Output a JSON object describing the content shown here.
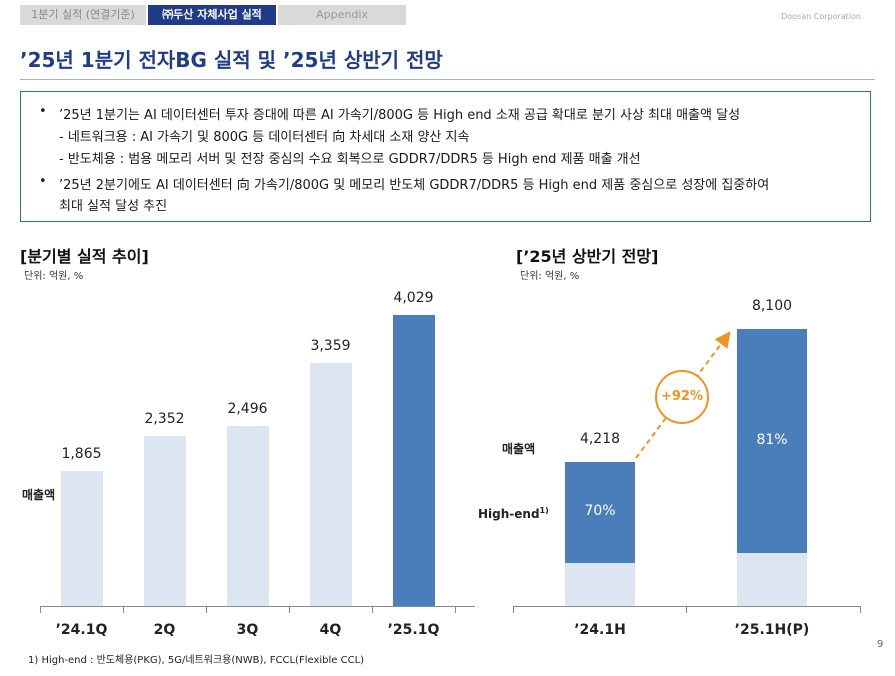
{
  "tabs": [
    {
      "label": "1분기 실적 (연결기준)",
      "active": false
    },
    {
      "label": "㈜두산 자체사업 실적",
      "active": true
    },
    {
      "label": "Appendix",
      "active": false
    }
  ],
  "corp_name": "Doosan Corporation",
  "page_title": "’25년 1분기 전자BG 실적 및 ’25년 상반기 전망",
  "summary": {
    "bullet_1": "’25년 1분기는 AI 데이터센터 투자 증대에 따른 AI 가속기/800G 등 High end 소재 공급 확대로 분기 사상 최대 매출액 달성",
    "sub_1": "- 네트워크용 : AI 가속기 및 800G 등 데이터센터 向 차세대 소재 양산 지속",
    "sub_2": "- 반도체용 : 범용 메모리 서버 및 전장 중심의 수요 회복으로  GDDR7/DDR5 등 High end 제품 매출 개선",
    "bullet_2_line1": "’25년 2분기에도 AI 데이터센터 向 가속기/800G 및 메모리 반도체 GDDR7/DDR5 등 High end 제품 중심으로 성장에 집중하여",
    "bullet_2_line2": "최대 실적 달성 추진",
    "bullet_glyph": "•"
  },
  "left_section": {
    "title": "[분기별 실적 추이]",
    "unit": "단위: 억원, %",
    "row_label": "매출액"
  },
  "right_section": {
    "title": "[’25년 상반기 전망]",
    "unit": "단위: 억원, %",
    "row_label_sales": "매출액",
    "row_label_highend": "High-end",
    "footnote_mark": "1)",
    "growth_label": "+92%"
  },
  "footnote": "1) High-end : 반도체용(PKG), 5G/네트워크용(NWB), FCCL(Flexible CCL)",
  "page_number": "9",
  "colors": {
    "accent": "#1f3c88",
    "bar_light": "#dce6f2",
    "bar_dark": "#4a7ebb",
    "growth": "#f0931e"
  },
  "chart_data": [
    {
      "type": "bar",
      "title": "[분기별 실적 추이]",
      "unit": "단위: 억원, %",
      "categories": [
        "’24.1Q",
        "2Q",
        "3Q",
        "4Q",
        "’25.1Q"
      ],
      "series": [
        {
          "name": "매출액",
          "values": [
            1865,
            2352,
            2496,
            3359,
            4029
          ]
        }
      ],
      "value_labels": [
        "1,865",
        "2,352",
        "2,496",
        "3,359",
        "4,029"
      ],
      "highlight_index": 4,
      "ylim": [
        0,
        4500
      ]
    },
    {
      "type": "bar",
      "title": "[’25년 상반기 전망]",
      "unit": "단위: 억원, %",
      "categories": [
        "’24.1H",
        "’25.1H(P)"
      ],
      "series": [
        {
          "name": "매출액",
          "values": [
            4218,
            8100
          ]
        }
      ],
      "value_labels": [
        "4,218",
        "8,100"
      ],
      "high_end_share": [
        70,
        81
      ],
      "high_end_share_labels": [
        "70%",
        "81%"
      ],
      "growth": "+92%",
      "ylim": [
        0,
        9000
      ]
    }
  ]
}
